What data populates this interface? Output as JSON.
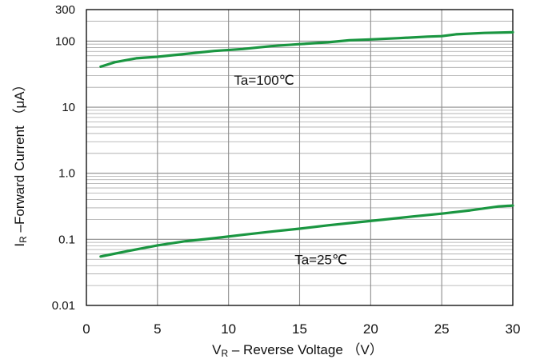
{
  "chart_data": {
    "type": "line",
    "xlabel_main": "V",
    "xlabel_sub": "R",
    "xlabel_rest": " – Reverse Voltage （V）",
    "ylabel_main": "I",
    "ylabel_sub": "R",
    "ylabel_rest": " –Forward Current （μA）",
    "xlim": [
      0,
      30
    ],
    "ylim": [
      0.01,
      300
    ],
    "y_scale": "log",
    "grid": true,
    "x_ticks": [
      0,
      5,
      10,
      15,
      20,
      25,
      30
    ],
    "x_tick_labels": [
      "0",
      "5",
      "10",
      "15",
      "20",
      "25",
      "30"
    ],
    "y_ticks": [
      0.01,
      0.1,
      1.0,
      10,
      100,
      300
    ],
    "y_tick_labels": [
      "0.01",
      "0.1",
      "1.0",
      "10",
      "100",
      "300"
    ],
    "line_color": "#1a9641",
    "series": [
      {
        "name": "Ta=100℃",
        "x": [
          1,
          2,
          3.5,
          5,
          7,
          9,
          11,
          13,
          15,
          17,
          18.5,
          20,
          22,
          24,
          25,
          26,
          28,
          30
        ],
        "y": [
          41,
          48,
          55,
          58,
          64,
          71,
          76,
          84,
          90,
          96,
          103,
          106,
          111,
          117,
          119,
          127,
          133,
          136
        ]
      },
      {
        "name": "Ta=25℃",
        "x": [
          1,
          3,
          5,
          7,
          9,
          11,
          13,
          15,
          17,
          19,
          21,
          23,
          25,
          27,
          29,
          30
        ],
        "y": [
          0.055,
          0.067,
          0.081,
          0.094,
          0.104,
          0.117,
          0.131,
          0.145,
          0.163,
          0.181,
          0.2,
          0.222,
          0.245,
          0.275,
          0.315,
          0.325
        ]
      }
    ]
  }
}
